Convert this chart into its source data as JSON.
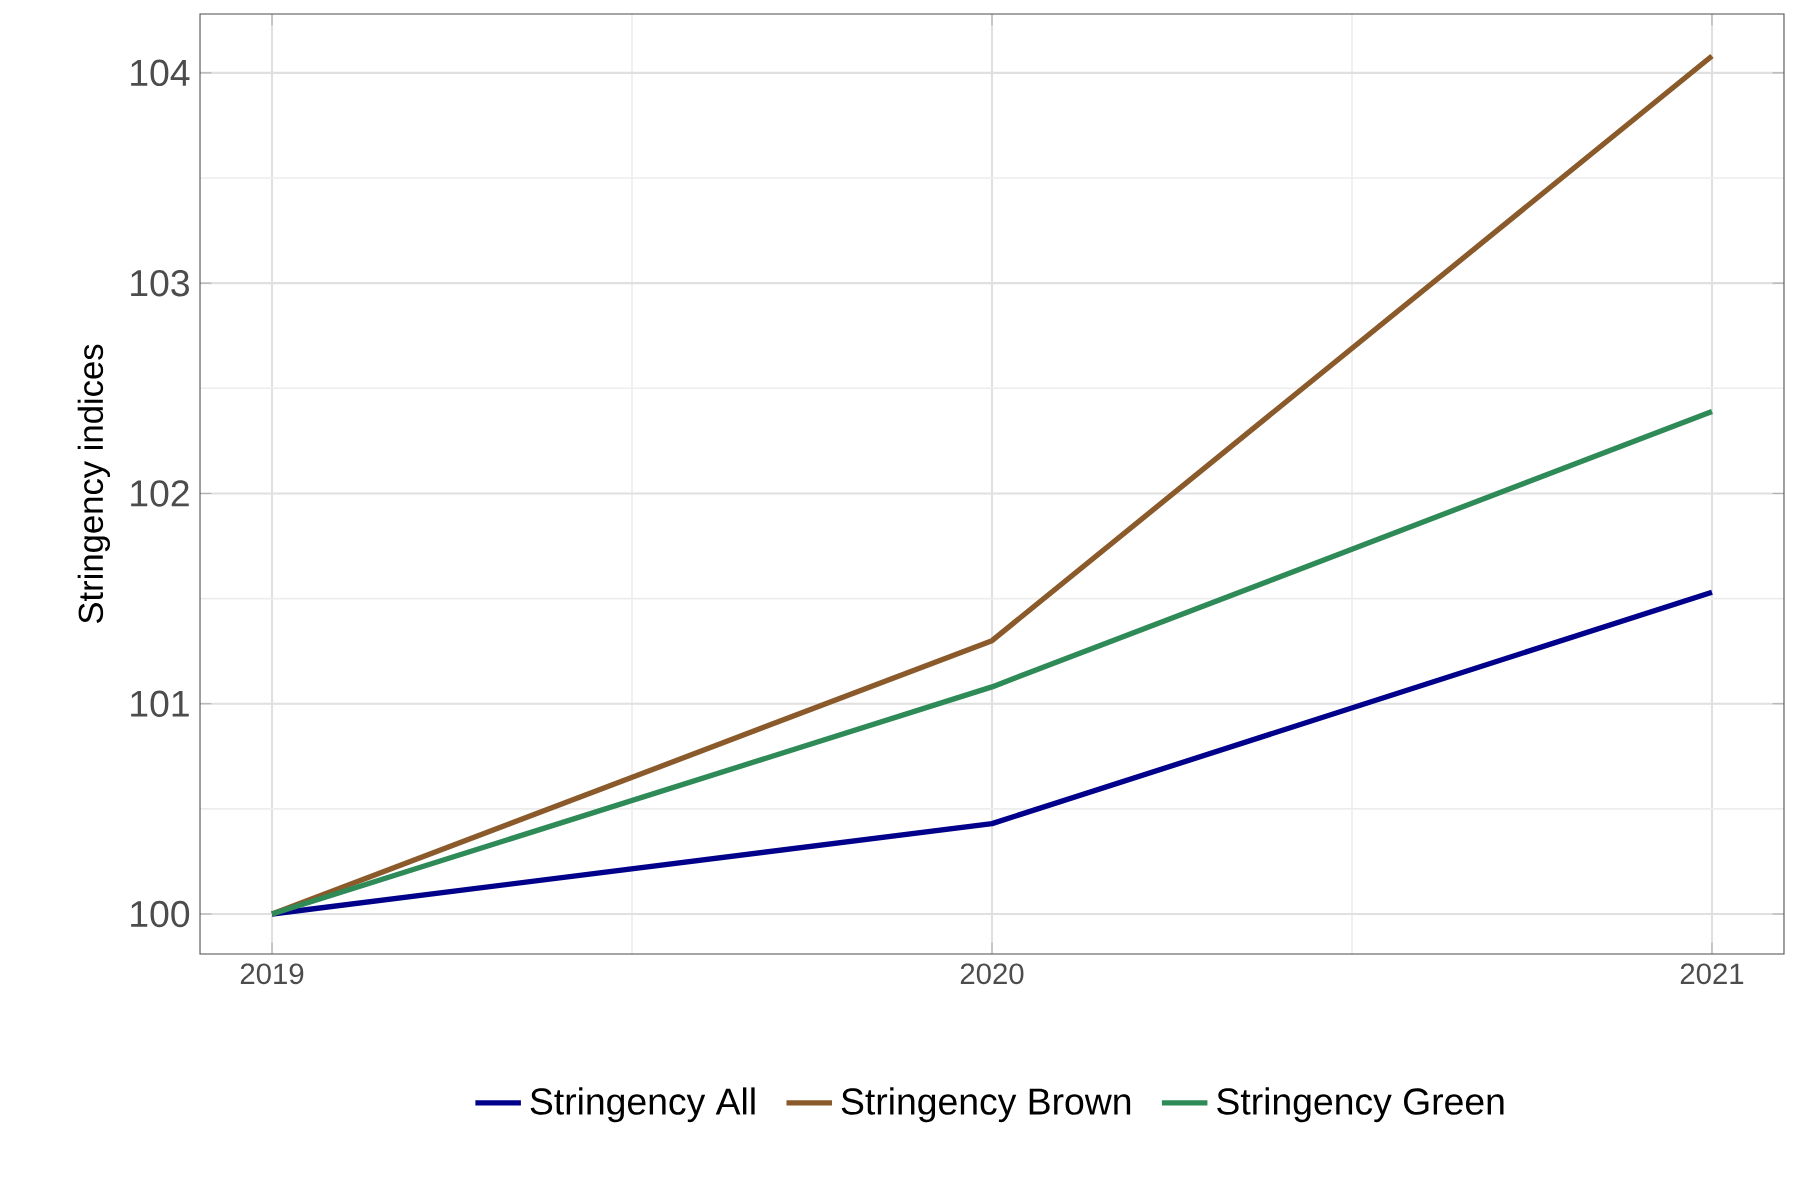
{
  "chart_data": {
    "type": "line",
    "ylabel": "Stringency indices",
    "x": [
      2019,
      2020,
      2021
    ],
    "series": [
      {
        "name": "Stringency All",
        "color": "#00008b",
        "values": [
          100,
          100.43,
          101.53
        ]
      },
      {
        "name": "Stringency Brown",
        "color": "#8b5a2b",
        "values": [
          100,
          101.3,
          104.08
        ]
      },
      {
        "name": "Stringency Green",
        "color": "#2e8b57",
        "values": [
          100,
          101.08,
          102.39
        ]
      }
    ],
    "xlim": [
      2018.9,
      2021.1
    ],
    "ylim": [
      99.81,
      104.28
    ],
    "xticks": [
      2019,
      2020,
      2021
    ],
    "yticks": [
      100,
      101,
      102,
      103,
      104
    ],
    "grid": true,
    "legend": "bottom",
    "marker": "none",
    "line_style": "solid"
  }
}
